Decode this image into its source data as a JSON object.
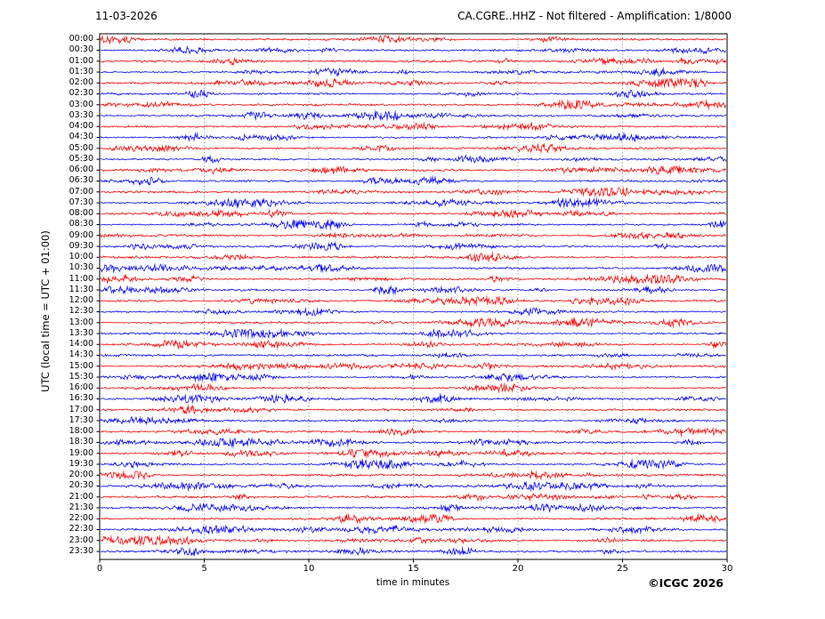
{
  "header": {
    "date": "11-03-2026",
    "title": "CA.CGRE..HHZ - Not filtered - Amplification: 1/8000"
  },
  "footer": {
    "copyright": "©ICGC 2026"
  },
  "chart_data": {
    "type": "line",
    "subtype": "seismogram-helicorder-dayplot",
    "station": "CA.CGRE..HHZ",
    "date": "11-03-2026",
    "filter": "Not filtered",
    "amplification": "1/8000",
    "title": "CA.CGRE..HHZ - Not filtered - Amplification: 1/8000",
    "xlabel": "time in minutes",
    "ylabel": "UTC (local time = UTC + 01:00)",
    "xlim": [
      0,
      30
    ],
    "x_ticks": [
      0,
      5,
      10,
      15,
      20,
      25,
      30
    ],
    "grid_minutes": [
      5,
      10,
      15,
      20,
      25
    ],
    "grid_style": "dotted-vertical",
    "grid_color": "#8a8a8a",
    "frame_color": "#000000",
    "minutes_per_line": 30,
    "legend_position": "none",
    "content_note": "48 half-hour traces of continuous low-amplitude seismic background noise with scattered small noise bursts; no large events; colors alternate red/blue per line",
    "palette": {
      "red": "#fb0000",
      "blue": "#0000f5"
    },
    "rows": [
      {
        "label": "00:00",
        "color": "red"
      },
      {
        "label": "00:30",
        "color": "blue"
      },
      {
        "label": "01:00",
        "color": "red"
      },
      {
        "label": "01:30",
        "color": "blue"
      },
      {
        "label": "02:00",
        "color": "red"
      },
      {
        "label": "02:30",
        "color": "blue"
      },
      {
        "label": "03:00",
        "color": "red"
      },
      {
        "label": "03:30",
        "color": "blue"
      },
      {
        "label": "04:00",
        "color": "red"
      },
      {
        "label": "04:30",
        "color": "blue"
      },
      {
        "label": "05:00",
        "color": "red"
      },
      {
        "label": "05:30",
        "color": "blue"
      },
      {
        "label": "06:00",
        "color": "red"
      },
      {
        "label": "06:30",
        "color": "blue"
      },
      {
        "label": "07:00",
        "color": "red"
      },
      {
        "label": "07:30",
        "color": "blue"
      },
      {
        "label": "08:00",
        "color": "red"
      },
      {
        "label": "08:30",
        "color": "blue"
      },
      {
        "label": "09:00",
        "color": "red"
      },
      {
        "label": "09:30",
        "color": "blue"
      },
      {
        "label": "10:00",
        "color": "red"
      },
      {
        "label": "10:30",
        "color": "blue"
      },
      {
        "label": "11:00",
        "color": "red"
      },
      {
        "label": "11:30",
        "color": "blue"
      },
      {
        "label": "12:00",
        "color": "red"
      },
      {
        "label": "12:30",
        "color": "blue"
      },
      {
        "label": "13:00",
        "color": "red"
      },
      {
        "label": "13:30",
        "color": "blue"
      },
      {
        "label": "14:00",
        "color": "red"
      },
      {
        "label": "14:30",
        "color": "blue"
      },
      {
        "label": "15:00",
        "color": "red"
      },
      {
        "label": "15:30",
        "color": "blue"
      },
      {
        "label": "16:00",
        "color": "red"
      },
      {
        "label": "16:30",
        "color": "blue"
      },
      {
        "label": "17:00",
        "color": "red"
      },
      {
        "label": "17:30",
        "color": "blue"
      },
      {
        "label": "18:00",
        "color": "red"
      },
      {
        "label": "18:30",
        "color": "blue"
      },
      {
        "label": "19:00",
        "color": "red"
      },
      {
        "label": "19:30",
        "color": "blue"
      },
      {
        "label": "20:00",
        "color": "red"
      },
      {
        "label": "20:30",
        "color": "blue"
      },
      {
        "label": "21:00",
        "color": "red"
      },
      {
        "label": "21:30",
        "color": "blue"
      },
      {
        "label": "22:00",
        "color": "red"
      },
      {
        "label": "22:30",
        "color": "blue"
      },
      {
        "label": "23:00",
        "color": "red"
      },
      {
        "label": "23:30",
        "color": "blue"
      }
    ]
  }
}
